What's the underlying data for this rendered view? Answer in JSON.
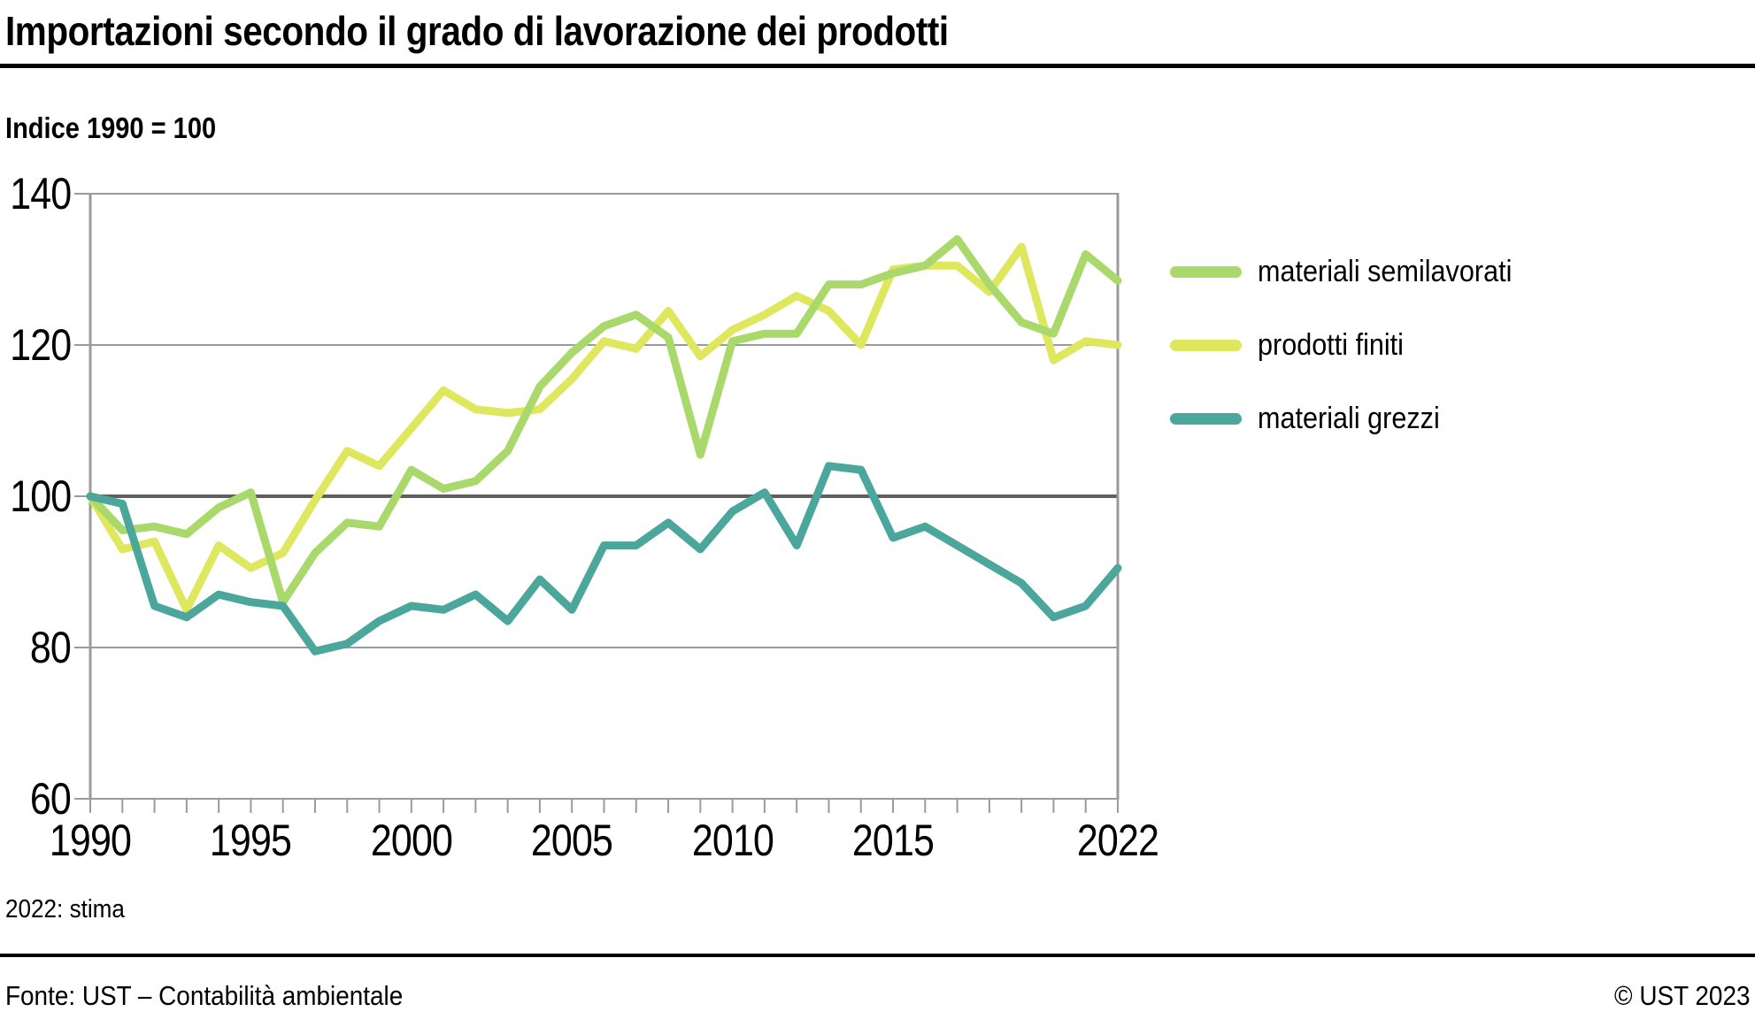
{
  "header": {
    "title": "Importazioni secondo il grado di lavorazione dei prodotti",
    "subtitle": "Indice 1990 = 100"
  },
  "footnote": "2022: stima",
  "footer": {
    "source": "Fonte: UST – Contabilità ambientale",
    "copyright": "© UST 2023"
  },
  "chart_data": {
    "type": "line",
    "title": "Importazioni secondo il grado di lavorazione dei prodotti",
    "subtitle": "Indice 1990 = 100",
    "xlim": [
      1990,
      2022
    ],
    "ylim": [
      60,
      140
    ],
    "baseline": 100,
    "grid": true,
    "legend_position": "right",
    "y_ticks": [
      140,
      120,
      100,
      80,
      60
    ],
    "x_tick_years": [
      1990,
      1995,
      2000,
      2005,
      2010,
      2015,
      2022
    ],
    "x": [
      1990,
      1991,
      1992,
      1993,
      1994,
      1995,
      1996,
      1997,
      1998,
      1999,
      2000,
      2001,
      2002,
      2003,
      2004,
      2005,
      2006,
      2007,
      2008,
      2009,
      2010,
      2011,
      2012,
      2013,
      2014,
      2015,
      2016,
      2017,
      2018,
      2019,
      2020,
      2021,
      2022
    ],
    "series": [
      {
        "id": "materiali_semilavorati",
        "name": "materiali semilavorati",
        "color": "#a9d86b",
        "values": [
          100,
          95.5,
          96,
          95,
          98.5,
          100.5,
          86,
          92.5,
          96.5,
          96,
          103.5,
          101,
          102,
          106,
          114.5,
          119,
          122.5,
          124,
          121,
          105.5,
          120.5,
          121.5,
          121.5,
          128,
          128,
          129.5,
          130.5,
          134,
          128,
          123,
          121.5,
          132,
          128.5
        ]
      },
      {
        "id": "prodotti_finiti",
        "name": "prodotti finiti",
        "color": "#dfe75e",
        "values": [
          100,
          93,
          94,
          85,
          93.5,
          90.5,
          92.5,
          99.5,
          106,
          104,
          109,
          114,
          111.5,
          111,
          111.5,
          115.5,
          120.5,
          119.5,
          124.5,
          118.5,
          122,
          124,
          126.5,
          124.5,
          120,
          130,
          130.5,
          130.5,
          127,
          133,
          118,
          120.5,
          120
        ]
      },
      {
        "id": "materiali_grezzi",
        "name": "materiali grezzi",
        "color": "#4ba69b",
        "values": [
          100,
          99,
          85.5,
          84,
          87,
          86,
          85.5,
          79.5,
          80.5,
          83.5,
          85.5,
          85,
          87,
          83.5,
          89,
          85,
          93.5,
          93.5,
          96.5,
          93,
          98,
          100.5,
          93.5,
          104,
          103.5,
          94.5,
          96,
          93.5,
          91,
          88.5,
          84,
          85.5,
          90.5
        ]
      }
    ],
    "draw_order": [
      "prodotti_finiti",
      "materiali_semilavorati",
      "materiali_grezzi"
    ],
    "colors": {
      "grid": "#9b9b9b",
      "grid_emphasis": "#5f5f5f",
      "text": "#000000",
      "background": "#ffffff"
    }
  }
}
